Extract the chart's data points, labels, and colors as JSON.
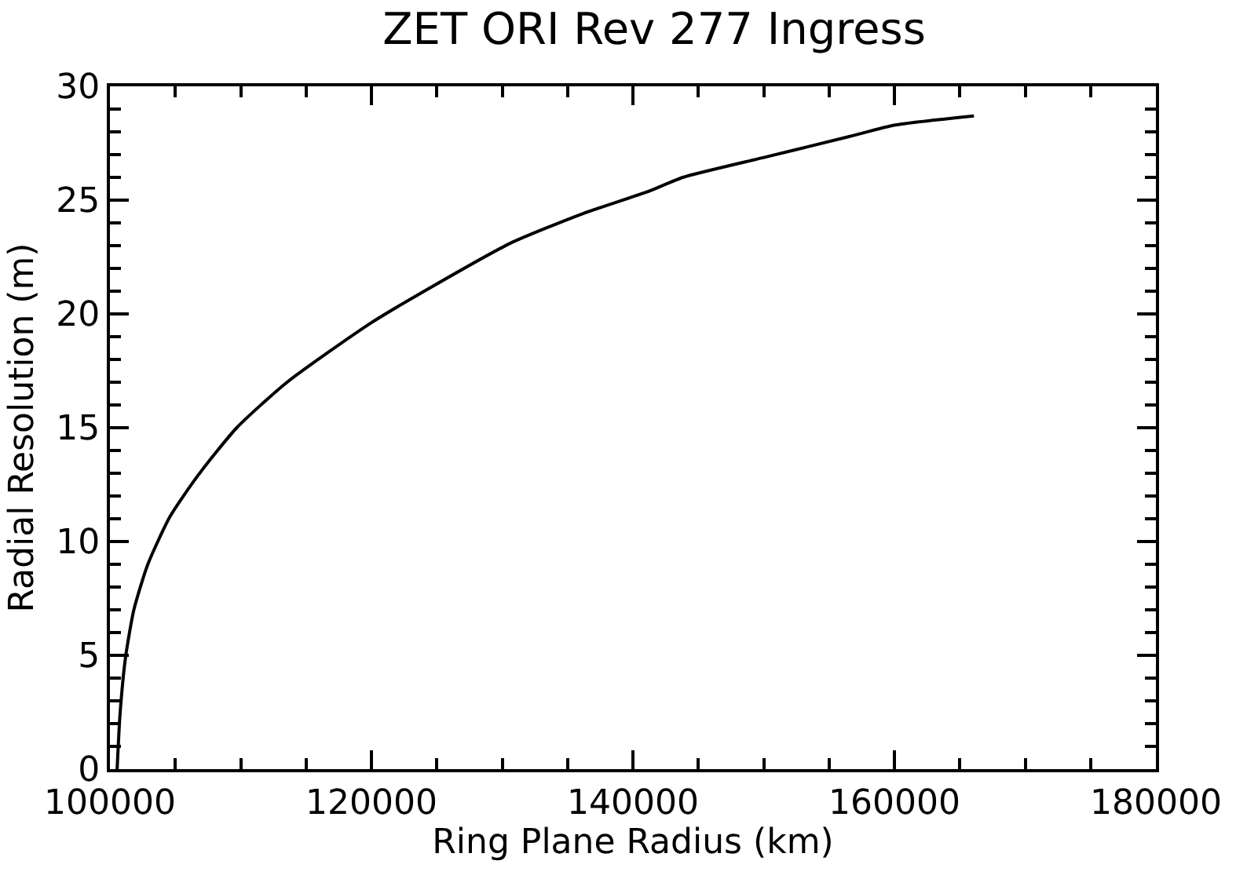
{
  "chart_data": {
    "type": "line",
    "title": "ZET ORI Rev 277 Ingress",
    "xlabel": "Ring Plane Radius (km)",
    "ylabel": "Radial Resolution (m)",
    "x": [
      100550,
      100770,
      101190,
      101830,
      102900,
      104600,
      106730,
      109700,
      113550,
      119950,
      124640,
      130600,
      136150,
      141260,
      143820,
      150200,
      156600,
      160060,
      166080
    ],
    "series": [
      {
        "color": "#000000",
        "values": [
          0,
          2.4,
          4.9,
          7.0,
          9.0,
          11.1,
          12.9,
          15.0,
          17.0,
          19.6,
          21.2,
          23.1,
          24.4,
          25.4,
          26.0,
          26.9,
          27.8,
          28.3,
          28.7
        ]
      }
    ],
    "xlim": [
      100000,
      180000
    ],
    "xticks": [
      100000,
      120000,
      140000,
      160000,
      180000
    ],
    "ylim": [
      0,
      30
    ],
    "yticks": [
      0,
      5,
      10,
      15,
      20,
      25,
      30
    ],
    "marker": "none",
    "line_style": "solid"
  }
}
